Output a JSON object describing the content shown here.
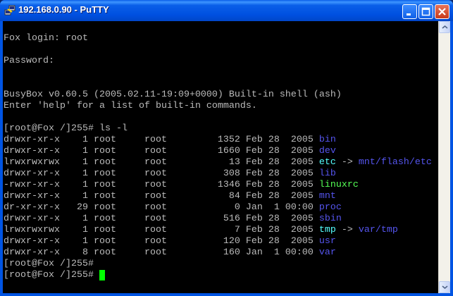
{
  "window": {
    "title": "192.168.0.90 - PuTTY",
    "icon": "putty-icon",
    "controls": [
      "minimize",
      "maximize",
      "close"
    ]
  },
  "colors": {
    "default": "#bbbbbb",
    "directory": "#5555ee",
    "symlink": "#55ffff",
    "executable": "#55ff55",
    "cursor": "#00ff00"
  },
  "terminal": {
    "lines": [
      [],
      [
        {
          "text": "Fox login: root",
          "kind": "default"
        }
      ],
      [],
      [
        {
          "text": "Password:",
          "kind": "default"
        }
      ],
      [],
      [],
      [
        {
          "text": "BusyBox v0.60.5 (2005.02.11-19:09+0000) Built-in shell (ash)",
          "kind": "default"
        }
      ],
      [
        {
          "text": "Enter 'help' for a list of built-in commands.",
          "kind": "default"
        }
      ],
      [],
      [
        {
          "text": "[root@Fox /]255# ls -l",
          "kind": "default"
        }
      ],
      [
        {
          "text": "drwxr-xr-x    1 root     root         1352 Feb 28  2005 ",
          "kind": "default"
        },
        {
          "text": "bin",
          "kind": "directory"
        }
      ],
      [
        {
          "text": "drwxr-xr-x    1 root     root         1660 Feb 28  2005 ",
          "kind": "default"
        },
        {
          "text": "dev",
          "kind": "directory"
        }
      ],
      [
        {
          "text": "lrwxrwxrwx    1 root     root           13 Feb 28  2005 ",
          "kind": "default"
        },
        {
          "text": "etc",
          "kind": "symlink"
        },
        {
          "text": " -> ",
          "kind": "default"
        },
        {
          "text": "mnt/flash/etc",
          "kind": "directory"
        }
      ],
      [
        {
          "text": "drwxr-xr-x    1 root     root          308 Feb 28  2005 ",
          "kind": "default"
        },
        {
          "text": "lib",
          "kind": "directory"
        }
      ],
      [
        {
          "text": "-rwxr-xr-x    1 root     root         1346 Feb 28  2005 ",
          "kind": "default"
        },
        {
          "text": "linuxrc",
          "kind": "executable"
        }
      ],
      [
        {
          "text": "drwxr-xr-x    1 root     root           84 Feb 28  2005 ",
          "kind": "default"
        },
        {
          "text": "mnt",
          "kind": "directory"
        }
      ],
      [
        {
          "text": "dr-xr-xr-x   29 root     root            0 Jan  1 00:00 ",
          "kind": "default"
        },
        {
          "text": "proc",
          "kind": "directory"
        }
      ],
      [
        {
          "text": "drwxr-xr-x    1 root     root          516 Feb 28  2005 ",
          "kind": "default"
        },
        {
          "text": "sbin",
          "kind": "directory"
        }
      ],
      [
        {
          "text": "lrwxrwxrwx    1 root     root            7 Feb 28  2005 ",
          "kind": "default"
        },
        {
          "text": "tmp",
          "kind": "symlink"
        },
        {
          "text": " -> ",
          "kind": "default"
        },
        {
          "text": "var/tmp",
          "kind": "directory"
        }
      ],
      [
        {
          "text": "drwxr-xr-x    1 root     root          120 Feb 28  2005 ",
          "kind": "default"
        },
        {
          "text": "usr",
          "kind": "directory"
        }
      ],
      [
        {
          "text": "drwxr-xr-x    8 root     root          160 Jan  1 00:00 ",
          "kind": "default"
        },
        {
          "text": "var",
          "kind": "directory"
        }
      ],
      [
        {
          "text": "[root@Fox /]255#",
          "kind": "default"
        }
      ],
      [
        {
          "text": "[root@Fox /]255# ",
          "kind": "default"
        },
        {
          "cursor": true
        }
      ]
    ]
  }
}
